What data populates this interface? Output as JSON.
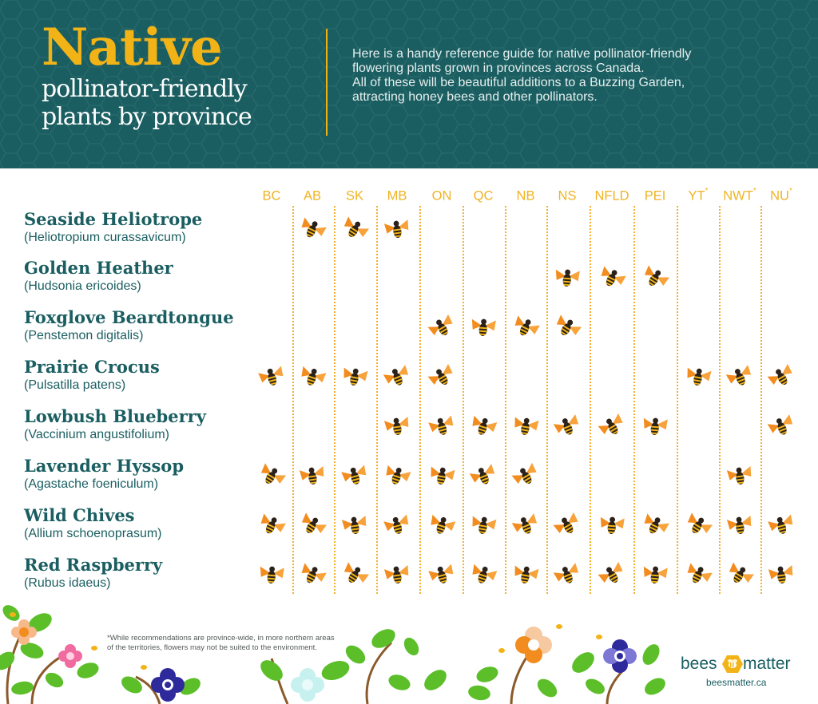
{
  "header": {
    "title_main": "Native",
    "title_sub_lines": [
      "pollinator-friendly",
      "plants by province"
    ],
    "intro_lines": [
      "Here is a handy reference guide for native pollinator-friendly",
      "flowering plants grown in provinces across Canada.",
      "All of these will be beautiful additions to a Buzzing Garden,",
      "attracting honey bees and other pollinators."
    ]
  },
  "provinces": [
    {
      "code": "BC",
      "asterisk": ""
    },
    {
      "code": "AB",
      "asterisk": ""
    },
    {
      "code": "SK",
      "asterisk": ""
    },
    {
      "code": "MB",
      "asterisk": ""
    },
    {
      "code": "ON",
      "asterisk": ""
    },
    {
      "code": "QC",
      "asterisk": ""
    },
    {
      "code": "NB",
      "asterisk": ""
    },
    {
      "code": "NS",
      "asterisk": ""
    },
    {
      "code": "NFLD",
      "asterisk": ""
    },
    {
      "code": "PEI",
      "asterisk": ""
    },
    {
      "code": "YT",
      "asterisk": "*"
    },
    {
      "code": "NWT",
      "asterisk": "*"
    },
    {
      "code": "NU",
      "asterisk": "*"
    }
  ],
  "plants": [
    {
      "name": "Seaside Heliotrope",
      "latin": "(Heliotropium curassavicum)",
      "provinces": [
        "AB",
        "SK",
        "MB"
      ]
    },
    {
      "name": "Golden Heather",
      "latin": "(Hudsonia ericoides)",
      "provinces": [
        "NS",
        "NFLD",
        "PEI"
      ]
    },
    {
      "name": "Foxglove Beardtongue",
      "latin": "(Penstemon digitalis)",
      "provinces": [
        "ON",
        "QC",
        "NB",
        "NS"
      ]
    },
    {
      "name": "Prairie Crocus",
      "latin": "(Pulsatilla patens)",
      "provinces": [
        "BC",
        "AB",
        "SK",
        "MB",
        "ON",
        "YT",
        "NWT",
        "NU"
      ]
    },
    {
      "name": "Lowbush Blueberry",
      "latin": "(Vaccinium angustifolium)",
      "provinces": [
        "MB",
        "ON",
        "QC",
        "NB",
        "NS",
        "NFLD",
        "PEI",
        "NU"
      ]
    },
    {
      "name": "Lavender Hyssop",
      "latin": "(Agastache foeniculum)",
      "provinces": [
        "BC",
        "AB",
        "SK",
        "MB",
        "ON",
        "QC",
        "NB",
        "NWT"
      ]
    },
    {
      "name": "Wild Chives",
      "latin": "(Allium schoenoprasum)",
      "provinces": [
        "BC",
        "AB",
        "SK",
        "MB",
        "ON",
        "QC",
        "NB",
        "NS",
        "NFLD",
        "PEI",
        "YT",
        "NWT",
        "NU"
      ]
    },
    {
      "name": "Red Raspberry",
      "latin": "(Rubus idaeus)",
      "provinces": [
        "BC",
        "AB",
        "SK",
        "MB",
        "ON",
        "QC",
        "NB",
        "NS",
        "NFLD",
        "PEI",
        "YT",
        "NWT",
        "NU"
      ]
    }
  ],
  "footer": {
    "note_lines": [
      "*While recommendations are province-wide, in more northern areas",
      "of the territories, flowers may not be suited to the environment."
    ],
    "logo_left": "bees",
    "logo_right": "matter",
    "logo_url": "beesmatter.ca"
  },
  "icons": {
    "marker": "honey-bee-icon",
    "logo_mark": "hexagon-bee-icon",
    "decoration": "flowers-and-leaves"
  },
  "colors": {
    "header_bg": "#1a5e61",
    "accent_gold": "#f2b317",
    "text_teal": "#1a5e61",
    "dotted_line": "#f2b02e",
    "bee_wing": "#f28c1e",
    "leaf": "#5cbf2a"
  }
}
